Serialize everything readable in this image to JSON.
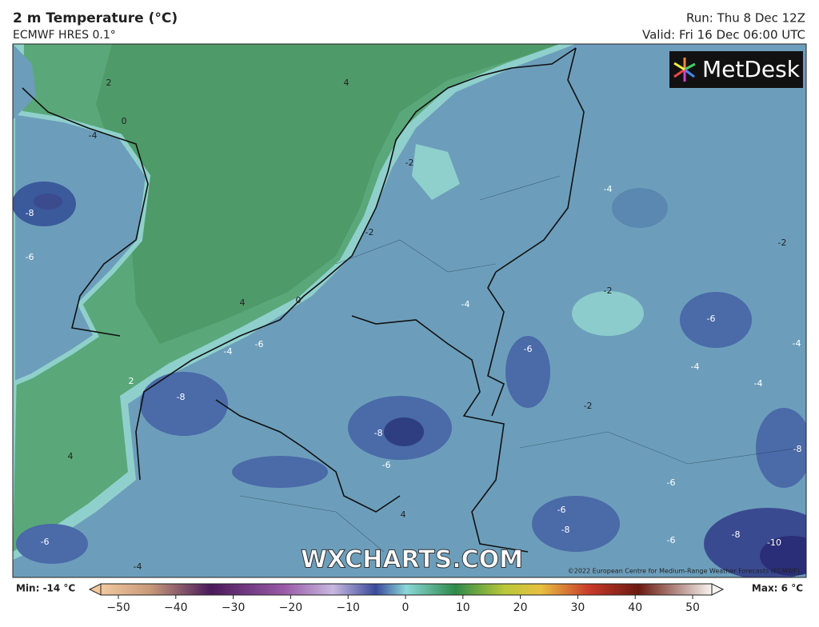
{
  "header": {
    "title": "2 m Temperature (°C)",
    "model": "ECMWF HRES 0.1°",
    "run": "Run: Thu 8 Dec 12Z",
    "valid": "Valid: Fri 16 Dec 06:00 UTC"
  },
  "logo": "MetDesk",
  "watermark": "WXCHARTS.COM",
  "copyright": "©2022 European Centre for Medium-Range Weather Forecasts (ECMWF)",
  "contour_labels": [
    "2",
    "0",
    "-4",
    "4",
    "-2",
    "-2",
    "-8",
    "-6",
    "4",
    "0",
    "-4",
    "-2",
    "-4",
    "-2",
    "-6",
    "-4",
    "-4",
    "-4",
    "-6",
    "-4",
    "-6",
    "2",
    "-8",
    "-2",
    "-8",
    "-6",
    "-6",
    "-6",
    "-8",
    "-8",
    "-10",
    "-6",
    "4",
    "4",
    "-6",
    "-4",
    "-8"
  ],
  "legend": {
    "min": "Min: -14 °C",
    "max": "Max: 6 °C",
    "ticks": [
      {
        "value": -50,
        "label": "−50"
      },
      {
        "value": -40,
        "label": "−40"
      },
      {
        "value": -30,
        "label": "−30"
      },
      {
        "value": -20,
        "label": "−20"
      },
      {
        "value": -10,
        "label": "−10"
      },
      0,
      10,
      20,
      30,
      40,
      50
    ]
  }
}
